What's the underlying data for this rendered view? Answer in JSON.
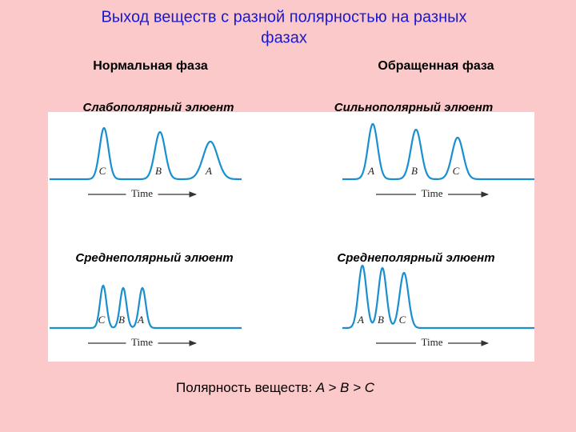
{
  "header": {
    "title_line1": "Выход  веществ с разной полярностью на разных",
    "title_line2": "фазах"
  },
  "phases": [
    "Нормальная фаза",
    "Обращенная фаза"
  ],
  "panels": [
    {
      "eluent": "Слабополярный элюент",
      "peaks": [
        "C",
        "B",
        "A"
      ],
      "time": "Time"
    },
    {
      "eluent": "Сильнополярный элюент",
      "peaks": [
        "A",
        "B",
        "C"
      ],
      "time": "Time"
    },
    {
      "eluent": "Среднеполярный элюент",
      "peaks": [
        "C",
        "B",
        "A"
      ],
      "time": "Time"
    },
    {
      "eluent": "Среднеполярный элюент",
      "peaks": [
        "A",
        "B",
        "C"
      ],
      "time": "Time"
    }
  ],
  "footer": {
    "text": "Полярность веществ:",
    "order": "A > B > C"
  }
}
